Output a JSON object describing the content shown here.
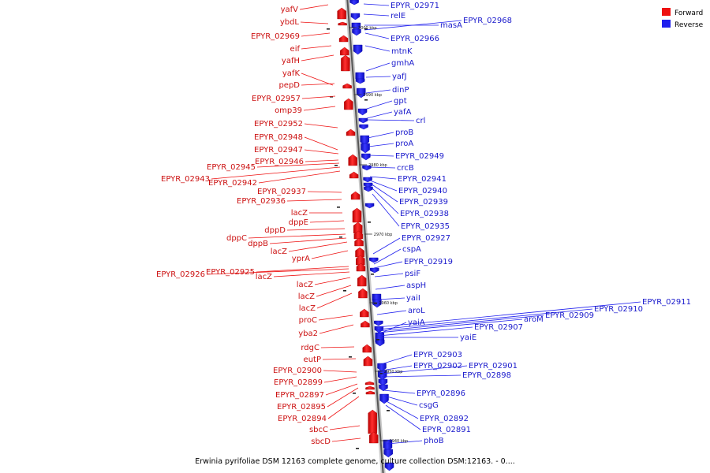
{
  "legend": {
    "forward_label": "Forward",
    "reverse_label": "Reverse",
    "forward_color": "#ee1111",
    "reverse_color": "#1f1fee"
  },
  "caption": "Erwinia pyrifoliae DSM 12163 complete genome, culture collection DSM:12163. - 0....",
  "scale_ticks": [
    "3000 kbp",
    "2990 kbp",
    "2980 kbp",
    "2970 kbp",
    "2960 kbp",
    "2950 kbp",
    "2940 kbp"
  ],
  "forward_genes": [
    "yafV",
    "ybdL",
    "EPYR_02969",
    "eif",
    "yafH",
    "yafK",
    "pepD",
    "EPYR_02957",
    "omp39",
    "EPYR_02952",
    "EPYR_02948",
    "EPYR_02947",
    "EPYR_02946",
    "EPYR_02945",
    "EPYR_02943",
    "EPYR_02942",
    "EPYR_02937",
    "EPYR_02936",
    "lacZ",
    "dppE",
    "dppD",
    "dppC",
    "dppB",
    "lacZ",
    "yprA",
    "EPYR_02925",
    "EPYR_02926",
    "lacZ",
    "lacZ",
    "lacZ",
    "lacZ",
    "proC",
    "yba2",
    "rdgC",
    "eutP",
    "EPYR_02900",
    "EPYR_02899",
    "EPYR_02897",
    "EPYR_02895",
    "EPYR_02894",
    "sbcC",
    "sbcD"
  ],
  "reverse_genes": [
    "EPYR_02971",
    "relE",
    "masA",
    "EPYR_02968",
    "EPYR_02966",
    "mtnK",
    "gmhA",
    "yafJ",
    "dinP",
    "gpt",
    "yafA",
    "crl",
    "proB",
    "proA",
    "EPYR_02949",
    "crcB",
    "EPYR_02941",
    "EPYR_02940",
    "EPYR_02939",
    "EPYR_02938",
    "EPYR_02935",
    "EPYR_02927",
    "cspA",
    "EPYR_02919",
    "psiF",
    "aspH",
    "yaiI",
    "aroL",
    "EPYR_02911",
    "EPYR_02910",
    "EPYR_02909",
    "aroM",
    "yaiA",
    "EPYR_02907",
    "yaiE",
    "EPYR_02903",
    "EPYR_02902",
    "EPYR_02901",
    "EPYR_02898",
    "EPYR_02896",
    "csgG",
    "EPYR_02892",
    "EPYR_02891",
    "phoB"
  ]
}
